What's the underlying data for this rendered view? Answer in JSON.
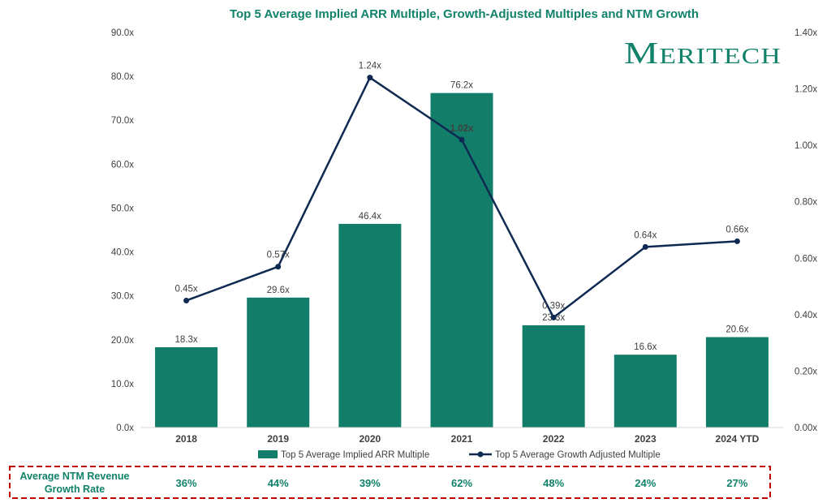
{
  "chart_data": {
    "type": "bar+line",
    "title": "Top 5 Average Implied ARR Multiple, Growth-Adjusted Multiples and NTM Growth",
    "logo_text": "Meritech",
    "categories": [
      "2018",
      "2019",
      "2020",
      "2021",
      "2022",
      "2023",
      "2024 YTD"
    ],
    "bar_series": {
      "name": "Top 5 Average Implied ARR Multiple",
      "values": [
        18.3,
        29.6,
        46.4,
        76.2,
        23.3,
        16.6,
        20.6
      ],
      "labels": [
        "18.3x",
        "29.6x",
        "46.4x",
        "76.2x",
        "23.3x",
        "16.6x",
        "20.6x"
      ],
      "color": "#127d68"
    },
    "line_series": {
      "name": "Top 5 Average Growth Adjusted Multiple",
      "values": [
        0.45,
        0.57,
        1.24,
        1.02,
        0.39,
        0.64,
        0.66
      ],
      "labels": [
        "0.45x",
        "0.57x",
        "1.24x",
        "1.02x",
        "0.39x",
        "0.64x",
        "0.66x"
      ],
      "color": "#0e2a52"
    },
    "y_left": {
      "ylim": [
        0,
        90
      ],
      "ticks": [
        "0.0x",
        "10.0x",
        "20.0x",
        "30.0x",
        "40.0x",
        "50.0x",
        "60.0x",
        "70.0x",
        "80.0x",
        "90.0x"
      ]
    },
    "y_right": {
      "ylim": [
        0,
        1.4
      ],
      "ticks": [
        "0.00x",
        "0.20x",
        "0.40x",
        "0.60x",
        "0.80x",
        "1.00x",
        "1.20x",
        "1.40x"
      ]
    },
    "grid": false,
    "legend_position": "bottom",
    "growth_row": {
      "label_lines": [
        "Average NTM Revenue",
        "Growth Rate"
      ],
      "values": [
        "36%",
        "44%",
        "39%",
        "62%",
        "48%",
        "24%",
        "27%"
      ],
      "border_color": "#c00000"
    }
  }
}
